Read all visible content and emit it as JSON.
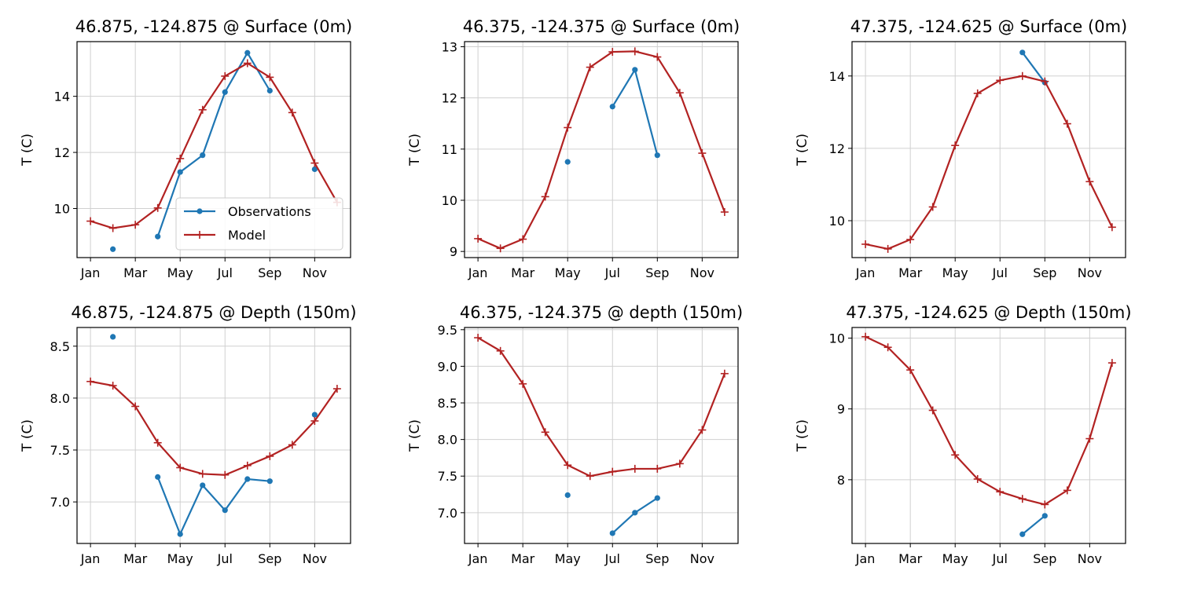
{
  "colors": {
    "observations": "#1f77b4",
    "model": "#b22222"
  },
  "legend": {
    "observations_label": "Observations",
    "model_label": "Model"
  },
  "chart_data": [
    {
      "type": "line",
      "title": "46.875, -124.875 @ Surface (0m)",
      "ylabel": "T (C)",
      "xticks": [
        0,
        2,
        4,
        6,
        8,
        10
      ],
      "xticklabels": [
        "Jan",
        "Mar",
        "May",
        "Jul",
        "Sep",
        "Nov"
      ],
      "xlim": [
        -0.6,
        11.6
      ],
      "ylim": [
        8.25,
        15.95
      ],
      "yticks": [
        10,
        12,
        14
      ],
      "yticklabels": [
        "10",
        "12",
        "14"
      ],
      "grid": true,
      "legend": "lower-right",
      "series": [
        {
          "name": "Observations",
          "x": [
            1,
            3,
            4,
            5,
            6,
            7,
            8,
            10
          ],
          "values": [
            8.55,
            9.0,
            11.3,
            11.9,
            14.15,
            15.55,
            14.2,
            11.4
          ],
          "segments": [
            [
              1
            ],
            [
              3,
              4,
              5,
              6,
              7,
              8
            ],
            [
              10
            ]
          ]
        },
        {
          "name": "Model",
          "x": [
            0,
            1,
            2,
            3,
            4,
            5,
            6,
            7,
            8,
            9,
            10,
            11
          ],
          "values": [
            9.55,
            9.3,
            9.42,
            10.02,
            11.78,
            13.52,
            14.72,
            15.18,
            14.68,
            13.42,
            11.62,
            10.22
          ]
        }
      ]
    },
    {
      "type": "line",
      "title": "46.375, -124.375 @ Surface (0m)",
      "ylabel": "T (C)",
      "xticks": [
        0,
        2,
        4,
        6,
        8,
        10
      ],
      "xticklabels": [
        "Jan",
        "Mar",
        "May",
        "Jul",
        "Sep",
        "Nov"
      ],
      "xlim": [
        -0.6,
        11.6
      ],
      "ylim": [
        8.88,
        13.1
      ],
      "yticks": [
        9,
        10,
        11,
        12,
        13
      ],
      "yticklabels": [
        "9",
        "10",
        "11",
        "12",
        "13"
      ],
      "grid": true,
      "series": [
        {
          "name": "Observations",
          "x": [
            4,
            6,
            7,
            8
          ],
          "values": [
            10.75,
            11.83,
            12.55,
            10.88
          ],
          "segments": [
            [
              4
            ],
            [
              6,
              7,
              8
            ]
          ]
        },
        {
          "name": "Model",
          "x": [
            0,
            1,
            2,
            3,
            4,
            5,
            6,
            7,
            8,
            9,
            10,
            11
          ],
          "values": [
            9.25,
            9.06,
            9.24,
            10.07,
            11.42,
            12.6,
            12.9,
            12.91,
            12.8,
            12.1,
            10.92,
            9.77
          ]
        }
      ]
    },
    {
      "type": "line",
      "title": "47.375, -124.625 @ Surface (0m)",
      "ylabel": "T (C)",
      "xticks": [
        0,
        2,
        4,
        6,
        8,
        10
      ],
      "xticklabels": [
        "Jan",
        "Mar",
        "May",
        "Jul",
        "Sep",
        "Nov"
      ],
      "xlim": [
        -0.6,
        11.6
      ],
      "ylim": [
        8.98,
        14.95
      ],
      "yticks": [
        10,
        12,
        14
      ],
      "yticklabels": [
        "10",
        "12",
        "14"
      ],
      "grid": true,
      "series": [
        {
          "name": "Observations",
          "x": [
            7,
            8
          ],
          "values": [
            14.65,
            13.82
          ],
          "segments": [
            [
              7,
              8
            ]
          ]
        },
        {
          "name": "Model",
          "x": [
            0,
            1,
            2,
            3,
            4,
            5,
            6,
            7,
            8,
            9,
            10,
            11
          ],
          "values": [
            9.35,
            9.22,
            9.48,
            10.38,
            12.08,
            13.52,
            13.88,
            14.0,
            13.85,
            12.68,
            11.08,
            9.82
          ]
        }
      ]
    },
    {
      "type": "line",
      "title": "46.875, -124.875 @ Depth (150m)",
      "ylabel": "T (C)",
      "xticks": [
        0,
        2,
        4,
        6,
        8,
        10
      ],
      "xticklabels": [
        "Jan",
        "Mar",
        "May",
        "Jul",
        "Sep",
        "Nov"
      ],
      "xlim": [
        -0.6,
        11.6
      ],
      "ylim": [
        6.6,
        8.68
      ],
      "yticks": [
        7.0,
        7.5,
        8.0,
        8.5
      ],
      "yticklabels": [
        "7.0",
        "7.5",
        "8.0",
        "8.5"
      ],
      "grid": true,
      "series": [
        {
          "name": "Observations",
          "x": [
            1,
            3,
            4,
            5,
            6,
            7,
            8,
            10
          ],
          "values": [
            8.59,
            7.24,
            6.69,
            7.16,
            6.92,
            7.22,
            7.2,
            7.84
          ],
          "segments": [
            [
              1
            ],
            [
              3,
              4,
              5,
              6,
              7,
              8
            ],
            [
              10
            ]
          ]
        },
        {
          "name": "Model",
          "x": [
            0,
            1,
            2,
            3,
            4,
            5,
            6,
            7,
            8,
            9,
            10,
            11
          ],
          "values": [
            8.16,
            8.12,
            7.92,
            7.57,
            7.33,
            7.27,
            7.26,
            7.35,
            7.44,
            7.55,
            7.78,
            8.09
          ]
        }
      ]
    },
    {
      "type": "line",
      "title": "46.375, -124.375 @ depth (150m)",
      "ylabel": "T (C)",
      "xticks": [
        0,
        2,
        4,
        6,
        8,
        10
      ],
      "xticklabels": [
        "Jan",
        "Mar",
        "May",
        "Jul",
        "Sep",
        "Nov"
      ],
      "xlim": [
        -0.6,
        11.6
      ],
      "ylim": [
        6.58,
        9.53
      ],
      "yticks": [
        7.0,
        7.5,
        8.0,
        8.5,
        9.0,
        9.5
      ],
      "yticklabels": [
        "7.0",
        "7.5",
        "8.0",
        "8.5",
        "9.0",
        "9.5"
      ],
      "grid": true,
      "series": [
        {
          "name": "Observations",
          "x": [
            4,
            6,
            7,
            8
          ],
          "values": [
            7.24,
            6.72,
            7.0,
            7.2
          ],
          "segments": [
            [
              4
            ],
            [
              6,
              7,
              8
            ]
          ]
        },
        {
          "name": "Model",
          "x": [
            0,
            1,
            2,
            3,
            4,
            5,
            6,
            7,
            8,
            9,
            10,
            11
          ],
          "values": [
            9.39,
            9.21,
            8.76,
            8.1,
            7.65,
            7.5,
            7.56,
            7.6,
            7.6,
            7.67,
            8.13,
            8.9
          ]
        }
      ]
    },
    {
      "type": "line",
      "title": "47.375, -124.625 @ Depth (150m)",
      "ylabel": "T (C)",
      "xticks": [
        0,
        2,
        4,
        6,
        8,
        10
      ],
      "xticklabels": [
        "Jan",
        "Mar",
        "May",
        "Jul",
        "Sep",
        "Nov"
      ],
      "xlim": [
        -0.6,
        11.6
      ],
      "ylim": [
        7.1,
        10.15
      ],
      "yticks": [
        8,
        9,
        10
      ],
      "yticklabels": [
        "8",
        "9",
        "10"
      ],
      "grid": true,
      "series": [
        {
          "name": "Observations",
          "x": [
            7,
            8
          ],
          "values": [
            7.23,
            7.49
          ],
          "segments": [
            [
              7,
              8
            ]
          ]
        },
        {
          "name": "Model",
          "x": [
            0,
            1,
            2,
            3,
            4,
            5,
            6,
            7,
            8,
            9,
            10,
            11
          ],
          "values": [
            10.02,
            9.87,
            9.55,
            8.98,
            8.35,
            8.01,
            7.83,
            7.73,
            7.65,
            7.85,
            8.58,
            9.65
          ]
        }
      ]
    }
  ]
}
